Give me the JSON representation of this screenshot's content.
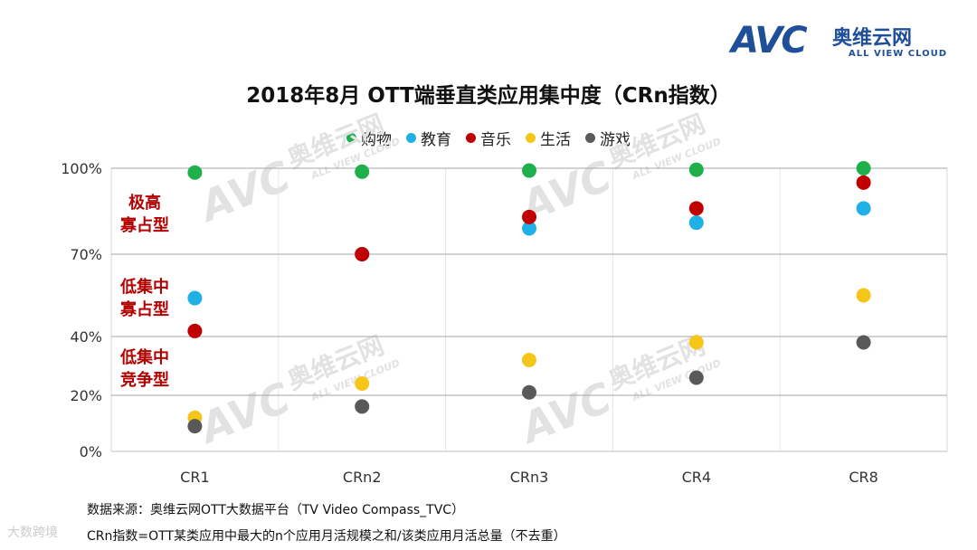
{
  "header": {
    "logo_mark": "AVC",
    "logo_cn": "奥维云网",
    "logo_en": "ALL VIEW CLOUD"
  },
  "chart_data": {
    "type": "scatter",
    "title": "2018年8月 OTT端垂直类应用集中度（CRn指数）",
    "categories": [
      "CR1",
      "CRn2",
      "CRn3",
      "CR4",
      "CR8"
    ],
    "y_tick_labels": [
      "100%",
      "70%",
      "40%",
      "20%",
      "0%"
    ],
    "grid": true,
    "legend_position": "top-center",
    "series": [
      {
        "name": "购物",
        "color": "#1fb04b",
        "values": [
          98.5,
          98.8,
          99.2,
          99.5,
          100
        ]
      },
      {
        "name": "教育",
        "color": "#1fb0e6",
        "values": [
          54,
          70,
          79,
          81,
          86
        ]
      },
      {
        "name": "音乐",
        "color": "#c00000",
        "values": [
          42,
          70,
          83,
          86,
          95
        ]
      },
      {
        "name": "生活",
        "color": "#f5c518",
        "values": [
          12,
          24,
          32,
          38,
          55
        ]
      },
      {
        "name": "游戏",
        "color": "#595959",
        "values": [
          9,
          16,
          21,
          26,
          38
        ]
      }
    ],
    "zone_labels": [
      {
        "line1": "极高",
        "line2": "寡占型"
      },
      {
        "line1": "低集中",
        "line2": "寡占型"
      },
      {
        "line1": "低集中",
        "line2": "竞争型"
      }
    ],
    "watermark": {
      "cn": "奥维云网",
      "en": "ALL VIEW CLOUD",
      "mark": "AVC"
    }
  },
  "footer": {
    "source": "数据来源：奥维云网OTT大数据平台（TV Video Compass_TVC）",
    "definition": "CRn指数=OTT某类应用中最大的n个应用月活规模之和/该类应用月活总量（不去重）",
    "corner_mark": "大数跨境"
  }
}
